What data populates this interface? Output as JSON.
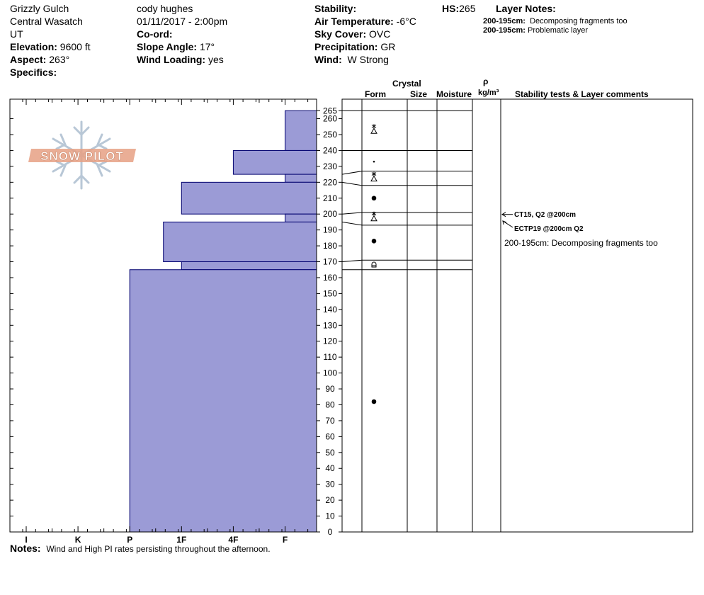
{
  "header": {
    "location": "Grizzly Gulch",
    "range": "Central Wasatch",
    "state": "UT",
    "elevation_label": "Elevation:",
    "elevation_value": "9600 ft",
    "aspect_label": "Aspect:",
    "aspect_value": "263°",
    "specifics_label": "Specifics:",
    "observer": "cody hughes",
    "datetime": "01/11/2017 - 2:00pm",
    "coord_label": "Co-ord:",
    "slope_label": "Slope Angle:",
    "slope_value": "17°",
    "wind_loading_label": "Wind Loading:",
    "wind_loading_value": "yes",
    "stability_label": "Stability:",
    "air_temp_label": "Air Temperature:",
    "air_temp_value": "-6°C",
    "sky_label": "Sky Cover:",
    "sky_value": "OVC",
    "precip_label": "Precipitation:",
    "precip_value": "GR",
    "wind_label": "Wind:",
    "wind_value": "W Strong",
    "hs_label": "HS:",
    "hs_value": "265",
    "layer_notes_label": "Layer Notes:",
    "layer_notes": [
      {
        "range": "200-195cm:",
        "text": "Decomposing fragments too"
      },
      {
        "range": "200-195cm:",
        "text": "Problematic layer"
      }
    ]
  },
  "columns": {
    "crystal": "Crystal",
    "form": "Form",
    "size": "Size",
    "moisture": "Moisture",
    "rho": "ρ",
    "density_unit": "kg/m³",
    "stability": "Stability tests & Layer comments"
  },
  "logo_text": "SNOW PILOT",
  "notes_label": "Notes:",
  "notes_text": "Wind and High PI rates persisting throughout the afternoon.",
  "stability_comments": [
    {
      "text": "CT15, Q2 @200cm",
      "depth": 200
    },
    {
      "text": "ECTP19 @200cm  Q2",
      "depth": 200
    },
    {
      "text": "200-195cm:  Decomposing fragments too",
      "depth": null
    }
  ],
  "chart_data": {
    "type": "bar",
    "title": "",
    "ylabel": "",
    "height_range_cm": [
      0,
      265
    ],
    "ylim": [
      0,
      270
    ],
    "y_ticks": [
      0,
      10,
      20,
      30,
      40,
      50,
      60,
      70,
      80,
      90,
      100,
      110,
      120,
      130,
      140,
      150,
      160,
      170,
      180,
      190,
      200,
      210,
      220,
      230,
      240,
      250,
      260,
      265
    ],
    "hardness_scale": [
      "I",
      "K",
      "P",
      "1F",
      "4F",
      "F"
    ],
    "hardness_profile": [
      {
        "top": 265,
        "bottom": 240,
        "hardness": "F"
      },
      {
        "top": 240,
        "bottom": 225,
        "hardness": "4F"
      },
      {
        "top": 225,
        "bottom": 220,
        "hardness": "F"
      },
      {
        "top": 220,
        "bottom": 200,
        "hardness": "1F+"
      },
      {
        "top": 200,
        "bottom": 195,
        "hardness": "F"
      },
      {
        "top": 195,
        "bottom": 170,
        "hardness": "P+"
      },
      {
        "top": 170,
        "bottom": 165,
        "hardness": "1F"
      },
      {
        "top": 165,
        "bottom": 0,
        "hardness": "P"
      }
    ],
    "hardness_index": [
      {
        "top": 265,
        "bottom": 240,
        "value": 6
      },
      {
        "top": 240,
        "bottom": 225,
        "value": 5
      },
      {
        "top": 225,
        "bottom": 220,
        "value": 6
      },
      {
        "top": 220,
        "bottom": 200,
        "value": 4
      },
      {
        "top": 200,
        "bottom": 195,
        "value": 6
      },
      {
        "top": 195,
        "bottom": 170,
        "value": 3.65
      },
      {
        "top": 170,
        "bottom": 165,
        "value": 4
      },
      {
        "top": 165,
        "bottom": 0,
        "value": 3
      }
    ],
    "layer_boundaries_profile": [
      265,
      240,
      227,
      218,
      201,
      193,
      171,
      165
    ],
    "layer_boundaries_graph": [
      265,
      240,
      225,
      220,
      200,
      195,
      170,
      165
    ],
    "grain_forms": [
      {
        "depth": 253,
        "form": "PPgp"
      },
      {
        "depth": 233,
        "form": "DF"
      },
      {
        "depth": 223,
        "form": "PPgp"
      },
      {
        "depth": 210,
        "form": "RG"
      },
      {
        "depth": 198,
        "form": "PPgp"
      },
      {
        "depth": 183,
        "form": "RG"
      },
      {
        "depth": 168,
        "form": "MFcr"
      },
      {
        "depth": 82,
        "form": "RG"
      }
    ],
    "test_depths": [
      200,
      197
    ]
  },
  "colors": {
    "bar_fill": "#9b9bd6",
    "bar_stroke": "#00006e",
    "axis": "#000000",
    "logo": "#e6a084"
  }
}
